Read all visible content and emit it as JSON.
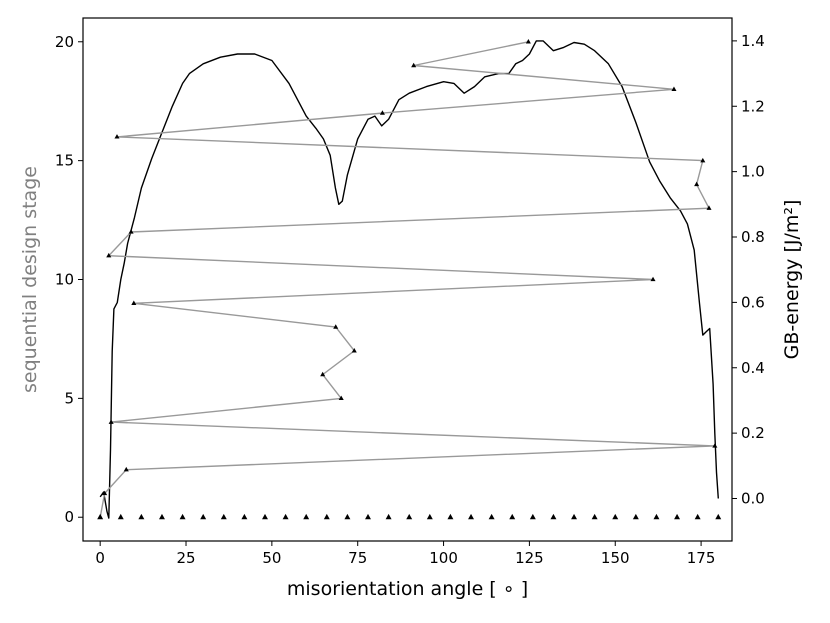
{
  "chart_data": {
    "type": "line",
    "xlabel": "misorientation angle [ ∘ ]",
    "ylabel_left": "sequential design stage",
    "ylabel_right": "GB-energy [J/m²]",
    "xlim": [
      -5,
      184
    ],
    "ylim_left": [
      -1,
      21
    ],
    "ylim_right": [
      -0.13,
      1.47
    ],
    "x_ticks": [
      0,
      25,
      50,
      75,
      100,
      125,
      150,
      175
    ],
    "y_left_ticks": [
      0,
      5,
      10,
      15,
      20
    ],
    "y_right_ticks": [
      0.0,
      0.2,
      0.4,
      0.6,
      0.8,
      1.0,
      1.2,
      1.4
    ],
    "grid": false,
    "colors": {
      "design_path": "#999999",
      "energy_curve": "#000000",
      "markers": "#000000",
      "left_label": "#808080"
    },
    "series": [
      {
        "axis": "left",
        "style": "design-path",
        "points": [
          [
            0,
            0
          ],
          [
            1.3,
            1
          ],
          [
            7.6,
            2
          ],
          [
            179,
            3
          ],
          [
            3.2,
            4
          ],
          [
            70.2,
            5
          ],
          [
            64.8,
            6
          ],
          [
            74,
            7
          ],
          [
            68.6,
            8
          ],
          [
            9.8,
            9
          ],
          [
            161,
            10
          ],
          [
            2.5,
            11
          ],
          [
            9,
            12
          ],
          [
            177.3,
            13
          ],
          [
            173.7,
            14
          ],
          [
            175.5,
            15
          ],
          [
            4.9,
            16
          ],
          [
            82.2,
            17
          ],
          [
            167.1,
            18
          ],
          [
            91.3,
            19
          ],
          [
            124.7,
            20
          ]
        ]
      },
      {
        "axis": "left",
        "style": "stage-zero-markers",
        "points": [
          [
            0,
            0
          ],
          [
            6,
            0
          ],
          [
            12,
            0
          ],
          [
            18,
            0
          ],
          [
            24,
            0
          ],
          [
            30,
            0
          ],
          [
            36,
            0
          ],
          [
            42,
            0
          ],
          [
            48,
            0
          ],
          [
            54,
            0
          ],
          [
            60,
            0
          ],
          [
            66,
            0
          ],
          [
            72,
            0
          ],
          [
            78,
            0
          ],
          [
            84,
            0
          ],
          [
            90,
            0
          ],
          [
            96,
            0
          ],
          [
            102,
            0
          ],
          [
            108,
            0
          ],
          [
            114,
            0
          ],
          [
            120,
            0
          ],
          [
            126,
            0
          ],
          [
            132,
            0
          ],
          [
            138,
            0
          ],
          [
            144,
            0
          ],
          [
            150,
            0
          ],
          [
            156,
            0
          ],
          [
            162,
            0
          ],
          [
            168,
            0
          ],
          [
            174,
            0
          ],
          [
            180,
            0
          ]
        ]
      },
      {
        "axis": "right",
        "style": "energy-curve",
        "points": [
          [
            0,
            0.005
          ],
          [
            1,
            0.02
          ],
          [
            2,
            -0.04
          ],
          [
            2.5,
            -0.06
          ],
          [
            3,
            0.15
          ],
          [
            3.5,
            0.45
          ],
          [
            4,
            0.58
          ],
          [
            5,
            0.6
          ],
          [
            6,
            0.67
          ],
          [
            7,
            0.72
          ],
          [
            8,
            0.78
          ],
          [
            10,
            0.86
          ],
          [
            12,
            0.95
          ],
          [
            15,
            1.04
          ],
          [
            18,
            1.12
          ],
          [
            21,
            1.2
          ],
          [
            24,
            1.27
          ],
          [
            26,
            1.3
          ],
          [
            30,
            1.33
          ],
          [
            35,
            1.35
          ],
          [
            40,
            1.36
          ],
          [
            45,
            1.36
          ],
          [
            50,
            1.34
          ],
          [
            55,
            1.27
          ],
          [
            60,
            1.17
          ],
          [
            63,
            1.13
          ],
          [
            65,
            1.1
          ],
          [
            67,
            1.05
          ],
          [
            68.5,
            0.95
          ],
          [
            69.5,
            0.9
          ],
          [
            70.5,
            0.91
          ],
          [
            72,
            0.99
          ],
          [
            75,
            1.1
          ],
          [
            78,
            1.16
          ],
          [
            80,
            1.17
          ],
          [
            82,
            1.14
          ],
          [
            84,
            1.16
          ],
          [
            87,
            1.22
          ],
          [
            90,
            1.24
          ],
          [
            95,
            1.26
          ],
          [
            100,
            1.275
          ],
          [
            103,
            1.27
          ],
          [
            106,
            1.24
          ],
          [
            109,
            1.26
          ],
          [
            112,
            1.29
          ],
          [
            116,
            1.3
          ],
          [
            119,
            1.3
          ],
          [
            121,
            1.33
          ],
          [
            123,
            1.34
          ],
          [
            125,
            1.36
          ],
          [
            127,
            1.4
          ],
          [
            129,
            1.4
          ],
          [
            132,
            1.37
          ],
          [
            135,
            1.38
          ],
          [
            138,
            1.395
          ],
          [
            141,
            1.39
          ],
          [
            144,
            1.37
          ],
          [
            148,
            1.33
          ],
          [
            152,
            1.26
          ],
          [
            156,
            1.15
          ],
          [
            160,
            1.03
          ],
          [
            163,
            0.97
          ],
          [
            166,
            0.92
          ],
          [
            169,
            0.88
          ],
          [
            171,
            0.84
          ],
          [
            173,
            0.76
          ],
          [
            174.5,
            0.6
          ],
          [
            175.5,
            0.5
          ],
          [
            176.5,
            0.51
          ],
          [
            177.5,
            0.52
          ],
          [
            178.5,
            0.35
          ],
          [
            179,
            0.2
          ],
          [
            179.5,
            0.08
          ],
          [
            180,
            0.0
          ]
        ]
      }
    ]
  }
}
